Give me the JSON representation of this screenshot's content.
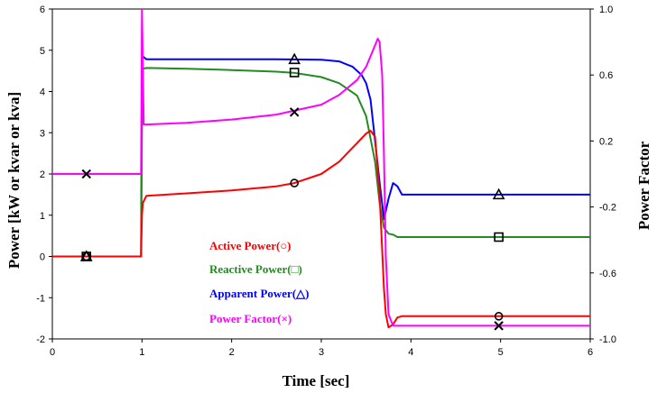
{
  "chart_data": {
    "type": "line",
    "xlabel": "Time [sec]",
    "ylabel": "Power [kW or kvar or kva]",
    "y2label": "Power Factor",
    "xlim": [
      0,
      6
    ],
    "ylim": [
      -2,
      6
    ],
    "y2lim": [
      -1.0,
      1.0
    ],
    "xticks": [
      "0",
      "1",
      "2",
      "3",
      "4",
      "5",
      "6"
    ],
    "yticks": [
      "6",
      "5",
      "4",
      "3",
      "2",
      "1",
      "0",
      "-1",
      "-2"
    ],
    "y2ticks": [
      "1.0",
      "0.6",
      "0.2",
      "-0.2",
      "-0.6",
      "-1.0"
    ],
    "grid": false,
    "legend_position": "center",
    "series": [
      {
        "name": "Active Power(○)",
        "color": "#ff0000",
        "marker": "circle",
        "axis": "left",
        "x": [
          0,
          0.99,
          1.0,
          1.01,
          1.05,
          1.5,
          2.0,
          2.5,
          2.7,
          3.0,
          3.2,
          3.4,
          3.5,
          3.55,
          3.6,
          3.65,
          3.7,
          3.72,
          3.75,
          3.8,
          3.85,
          3.9,
          4.0,
          5.0,
          6.0
        ],
        "y": [
          0,
          0,
          1.0,
          1.3,
          1.47,
          1.53,
          1.6,
          1.7,
          1.78,
          2.0,
          2.3,
          2.75,
          2.98,
          3.05,
          2.9,
          1.5,
          -0.8,
          -1.4,
          -1.72,
          -1.65,
          -1.48,
          -1.45,
          -1.45,
          -1.45,
          -1.45
        ],
        "markers_x": [
          0.38,
          2.7,
          4.98
        ],
        "markers_y": [
          0,
          1.78,
          -1.45
        ]
      },
      {
        "name": "Reactive Power(□)",
        "color": "#228b22",
        "marker": "square",
        "axis": "left",
        "x": [
          0,
          0.99,
          1.0,
          1.01,
          1.05,
          1.5,
          2.0,
          2.5,
          2.7,
          3.0,
          3.2,
          3.4,
          3.5,
          3.6,
          3.65,
          3.7,
          3.75,
          3.8,
          3.85,
          4.0,
          5.0,
          6.0
        ],
        "y": [
          0,
          0,
          3.0,
          4.55,
          4.57,
          4.55,
          4.52,
          4.48,
          4.45,
          4.35,
          4.2,
          3.9,
          3.4,
          2.3,
          1.3,
          0.7,
          0.55,
          0.53,
          0.47,
          0.47,
          0.47,
          0.47
        ],
        "markers_x": [
          0.38,
          2.7,
          4.98
        ],
        "markers_y": [
          0,
          4.46,
          0.47
        ]
      },
      {
        "name": "Apparent Power(△)",
        "color": "#0000ff",
        "marker": "triangle",
        "axis": "left",
        "x": [
          0,
          0.99,
          1.0,
          1.01,
          1.05,
          1.5,
          2.0,
          2.5,
          3.0,
          3.2,
          3.35,
          3.45,
          3.5,
          3.55,
          3.6,
          3.65,
          3.7,
          3.75,
          3.8,
          3.85,
          3.9,
          4.0,
          5.0,
          6.0
        ],
        "y": [
          0,
          0,
          4.8,
          4.85,
          4.78,
          4.78,
          4.78,
          4.78,
          4.77,
          4.73,
          4.6,
          4.4,
          4.2,
          3.8,
          2.8,
          1.8,
          0.9,
          1.4,
          1.78,
          1.7,
          1.5,
          1.5,
          1.5,
          1.5
        ],
        "markers_x": [
          0.38,
          2.7,
          4.98
        ],
        "markers_y": [
          0,
          4.78,
          1.5
        ]
      },
      {
        "name": "Power Factor(×)",
        "color": "#ff00ff",
        "marker": "x",
        "axis": "right",
        "x": [
          0,
          0.99,
          1.0,
          1.01,
          1.02,
          1.05,
          1.5,
          2.0,
          2.5,
          3.0,
          3.2,
          3.4,
          3.5,
          3.6,
          3.63,
          3.65,
          3.68,
          3.7,
          3.72,
          3.75,
          3.8,
          4.0,
          5.0,
          6.0
        ],
        "y": [
          0,
          0,
          1.0,
          0.65,
          0.3,
          0.3,
          0.31,
          0.33,
          0.36,
          0.42,
          0.48,
          0.57,
          0.65,
          0.78,
          0.82,
          0.8,
          0.6,
          0.1,
          -0.5,
          -0.85,
          -0.92,
          -0.92,
          -0.92,
          -0.92
        ],
        "markers_x": [
          0.38,
          2.7,
          4.98
        ],
        "markers_y": [
          0,
          0.375,
          -0.92
        ]
      }
    ]
  }
}
